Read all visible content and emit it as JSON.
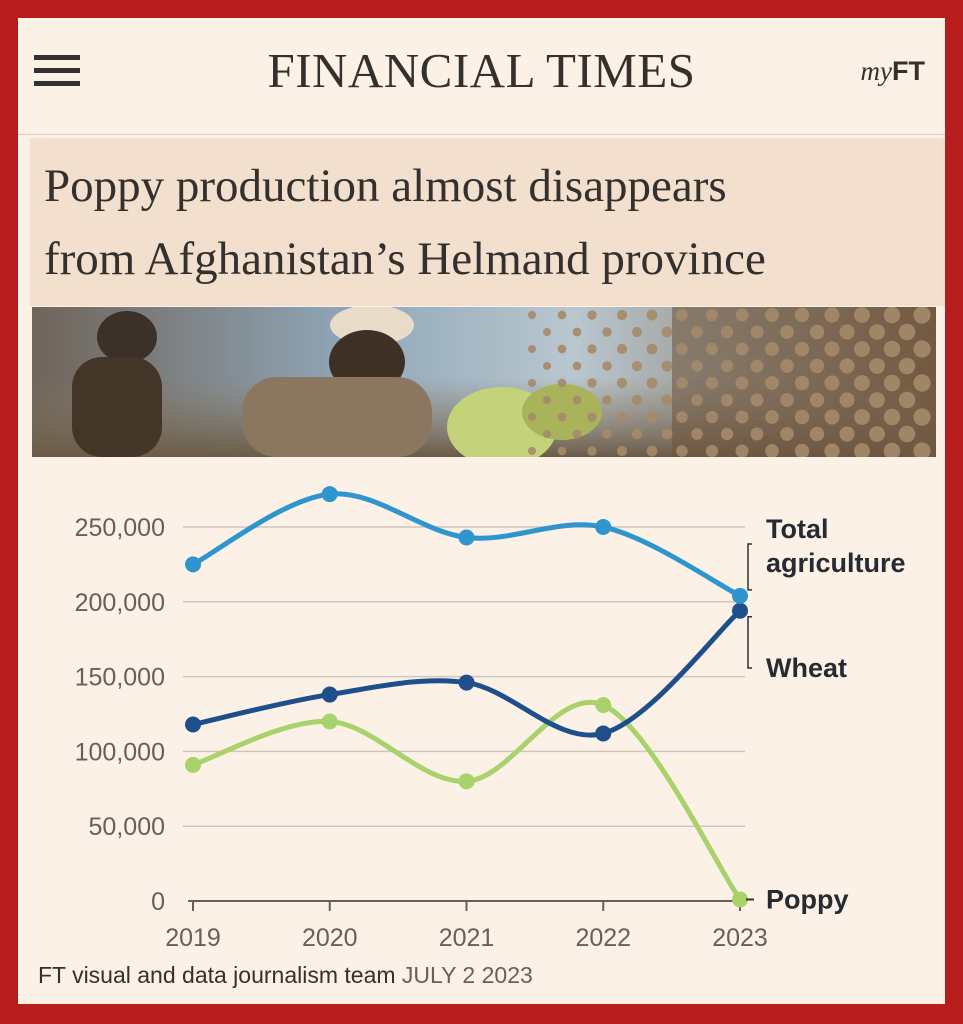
{
  "header": {
    "menu_icon": "hamburger-menu-icon",
    "masthead": "FINANCIAL TIMES",
    "myft_my": "my",
    "myft_ft": "FT"
  },
  "article": {
    "headline_line1": "Poppy production almost disappears",
    "headline_line2": "from Afghanistan’s Helmand province"
  },
  "colors": {
    "total_agriculture": "#2f95cf",
    "wheat": "#1f4f8b",
    "poppy": "#a8d26b",
    "frame": "#b81d1d",
    "background": "#fcf1e6"
  },
  "chart_data": {
    "type": "line",
    "x": [
      2019,
      2020,
      2021,
      2022,
      2023
    ],
    "ylim": [
      0,
      250000
    ],
    "yticks": [
      0,
      50000,
      100000,
      150000,
      200000,
      250000
    ],
    "ytick_labels": [
      "0",
      "50,000",
      "100,000",
      "150,000",
      "200,000",
      "250,000"
    ],
    "xtick_labels": [
      "2019",
      "2020",
      "2021",
      "2022",
      "2023"
    ],
    "grid": true,
    "series": [
      {
        "name_lines": [
          "Total",
          "agriculture"
        ],
        "values": [
          225000,
          272000,
          243000,
          250000,
          204000
        ]
      },
      {
        "name_lines": [
          "Wheat"
        ],
        "values": [
          118000,
          138000,
          146000,
          112000,
          194000
        ]
      },
      {
        "name_lines": [
          "Poppy"
        ],
        "values": [
          91000,
          120000,
          80000,
          131000,
          1000
        ]
      }
    ]
  },
  "footer": {
    "source": "FT visual and data journalism team",
    "date": "JULY 2 2023"
  }
}
